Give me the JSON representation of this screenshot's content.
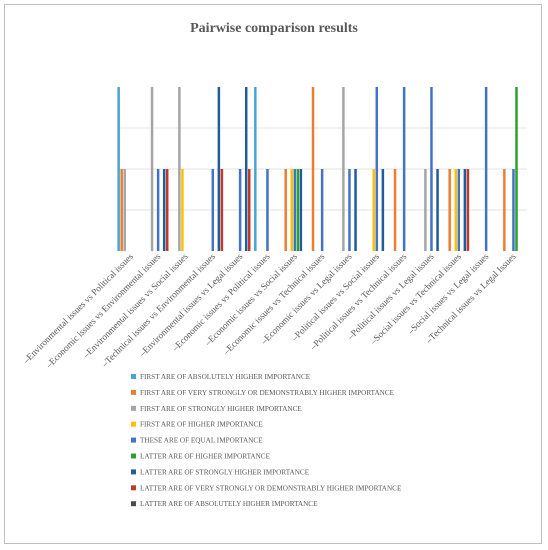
{
  "chart_data": {
    "type": "bar",
    "title": "Pairwise comparison results",
    "xlabel": "",
    "ylabel": "",
    "ylim": [
      0,
      4
    ],
    "grid": true,
    "legend_position": "bottom",
    "categories": [
      "Environmental issues vs Political issues",
      "Economic issues vs Environmental issues",
      "Environmental issues vs Social issues",
      "Technical issues vs Environmental issues",
      "Environmental issues vs Legal issues",
      "Economic issues vs Political issues",
      "Economic issues vs Social issues",
      "Economic issues vs Technical issues",
      "Economic issues vs Legal issues",
      "Political issues vs Social issues",
      "Political issues vs Technical issues",
      "Political issues vs Legal issues",
      "Social issues vs Technical issues",
      "Social issues vs Legal issues",
      "Technical issues vs Legal Issues"
    ],
    "tick_prefix": "–",
    "series": [
      {
        "name": "FIRST ARE OF ABSOLUTELY HIGHER IMPORTANCE",
        "color": "#4ba3d3",
        "values": [
          4,
          0,
          0,
          0,
          0,
          4,
          0,
          0,
          0,
          0,
          0,
          0,
          0,
          0,
          0
        ]
      },
      {
        "name": "FIRST ARE OF VERY STRONGLY OR DEMONSTRABLY HIGHER IMPORTANCE",
        "color": "#ed7d31",
        "values": [
          2,
          0,
          0,
          0,
          0,
          0,
          2,
          4,
          0,
          0,
          2,
          0,
          2,
          0,
          2
        ]
      },
      {
        "name": "FIRST ARE OF STRONGLY HIGHER IMPORTANCE",
        "color": "#a5a5a5",
        "values": [
          2,
          4,
          4,
          0,
          0,
          0,
          0,
          0,
          4,
          0,
          0,
          2,
          0,
          0,
          0
        ]
      },
      {
        "name": "FIRST ARE OF HIGHER IMPORTANCE",
        "color": "#ffc000",
        "values": [
          0,
          0,
          2,
          0,
          0,
          0,
          2,
          0,
          0,
          2,
          0,
          0,
          2,
          0,
          0
        ]
      },
      {
        "name": "THESE ARE OF EQUAL IMPORTANCE",
        "color": "#4472c4",
        "values": [
          0,
          2,
          0,
          2,
          2,
          2,
          2,
          2,
          2,
          4,
          4,
          4,
          2,
          4,
          2
        ]
      },
      {
        "name": "LATTER ARE OF HIGHER IMPORTANCE",
        "color": "#2ca02c",
        "values": [
          0,
          0,
          0,
          0,
          0,
          0,
          2,
          0,
          0,
          0,
          0,
          0,
          0,
          0,
          4
        ]
      },
      {
        "name": "LATTER ARE OF STRONGLY HIGHER IMPORTANCE",
        "color": "#1f5c99",
        "values": [
          0,
          2,
          0,
          4,
          4,
          0,
          2,
          0,
          2,
          2,
          0,
          2,
          2,
          0,
          0
        ]
      },
      {
        "name": "LATTER ARE OF VERY STRONGLY OR DEMONSTRABLY HIGHER IMPORTANCE",
        "color": "#c0392b",
        "values": [
          0,
          2,
          0,
          2,
          2,
          0,
          0,
          0,
          0,
          0,
          0,
          0,
          2,
          0,
          0
        ]
      },
      {
        "name": "LATTER ARE OF ABSOLUTELY HIGHER IMPORTANCE",
        "color": "#4d4d4d",
        "values": [
          0,
          0,
          0,
          0,
          0,
          0,
          0,
          0,
          0,
          0,
          0,
          0,
          0,
          0,
          0
        ]
      }
    ]
  }
}
